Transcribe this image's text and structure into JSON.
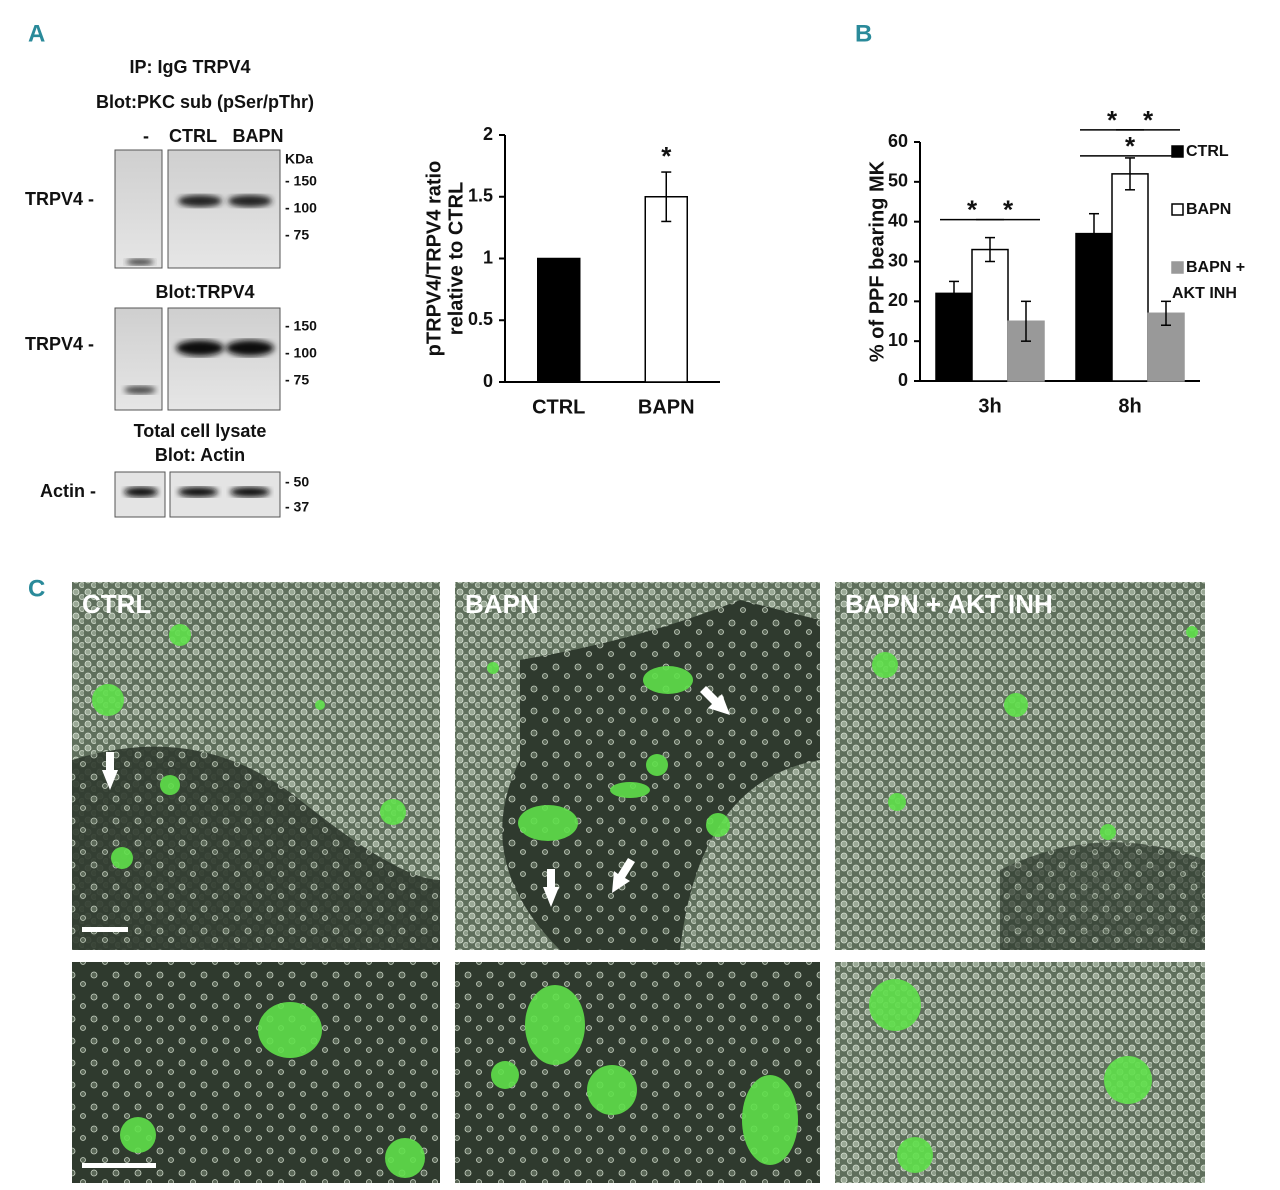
{
  "panel_labels": [
    "A",
    "B",
    "C"
  ],
  "blot": {
    "ip_label": "IP:  IgG  TRPV4",
    "blot1_title": "Blot:PKC sub (pSer/pThr)",
    "lanes": [
      "-",
      "CTRL",
      "BAPN"
    ],
    "kda": "KDa",
    "row1_label": "TRPV4 -",
    "markers1": [
      "- 150",
      "- 100",
      "- 75"
    ],
    "blot2_title": "Blot:TRPV4",
    "row2_label": "TRPV4 -",
    "markers2": [
      "- 150",
      "- 100",
      "- 75"
    ],
    "lysate_title": "Total cell lysate",
    "blot3_title": "Blot: Actin",
    "row3_label": "Actin -",
    "markers3": [
      "- 50",
      "- 37"
    ]
  },
  "chart_data": [
    {
      "type": "bar",
      "y_label": [
        "pTRPV4/TRPV4 ratio",
        "relative to CTRL"
      ],
      "categories": [
        "CTRL",
        "BAPN"
      ],
      "values": [
        1,
        1.5
      ],
      "errors": [
        null,
        0.2
      ],
      "colors": [
        "#000000",
        "#ffffff"
      ],
      "annotations": [
        null,
        "*"
      ],
      "ylim": [
        0,
        2
      ],
      "yticks": [
        0,
        0.5,
        1,
        1.5,
        2
      ]
    },
    {
      "type": "bar",
      "y_label": "% of PPF bearing  MK",
      "categories": [
        "3h",
        "8h"
      ],
      "series": [
        {
          "name": "CTRL",
          "color": "#000000",
          "values": [
            22,
            37
          ],
          "errors": [
            3,
            5
          ]
        },
        {
          "name": "BAPN",
          "color": "#ffffff",
          "values": [
            33,
            52
          ],
          "errors": [
            3,
            4
          ]
        },
        {
          "name": "BAPN + AKT INH",
          "color": "#999999",
          "values": [
            15,
            17
          ],
          "errors": [
            5,
            3
          ]
        }
      ],
      "significance": [
        "*",
        "*",
        "*",
        "*",
        "*"
      ],
      "ylim": [
        0,
        60
      ],
      "yticks": [
        0,
        10,
        20,
        30,
        40,
        50,
        60
      ]
    }
  ],
  "micrographs": {
    "labels": [
      "CTRL",
      "BAPN",
      "BAPN + AKT INH"
    ]
  }
}
